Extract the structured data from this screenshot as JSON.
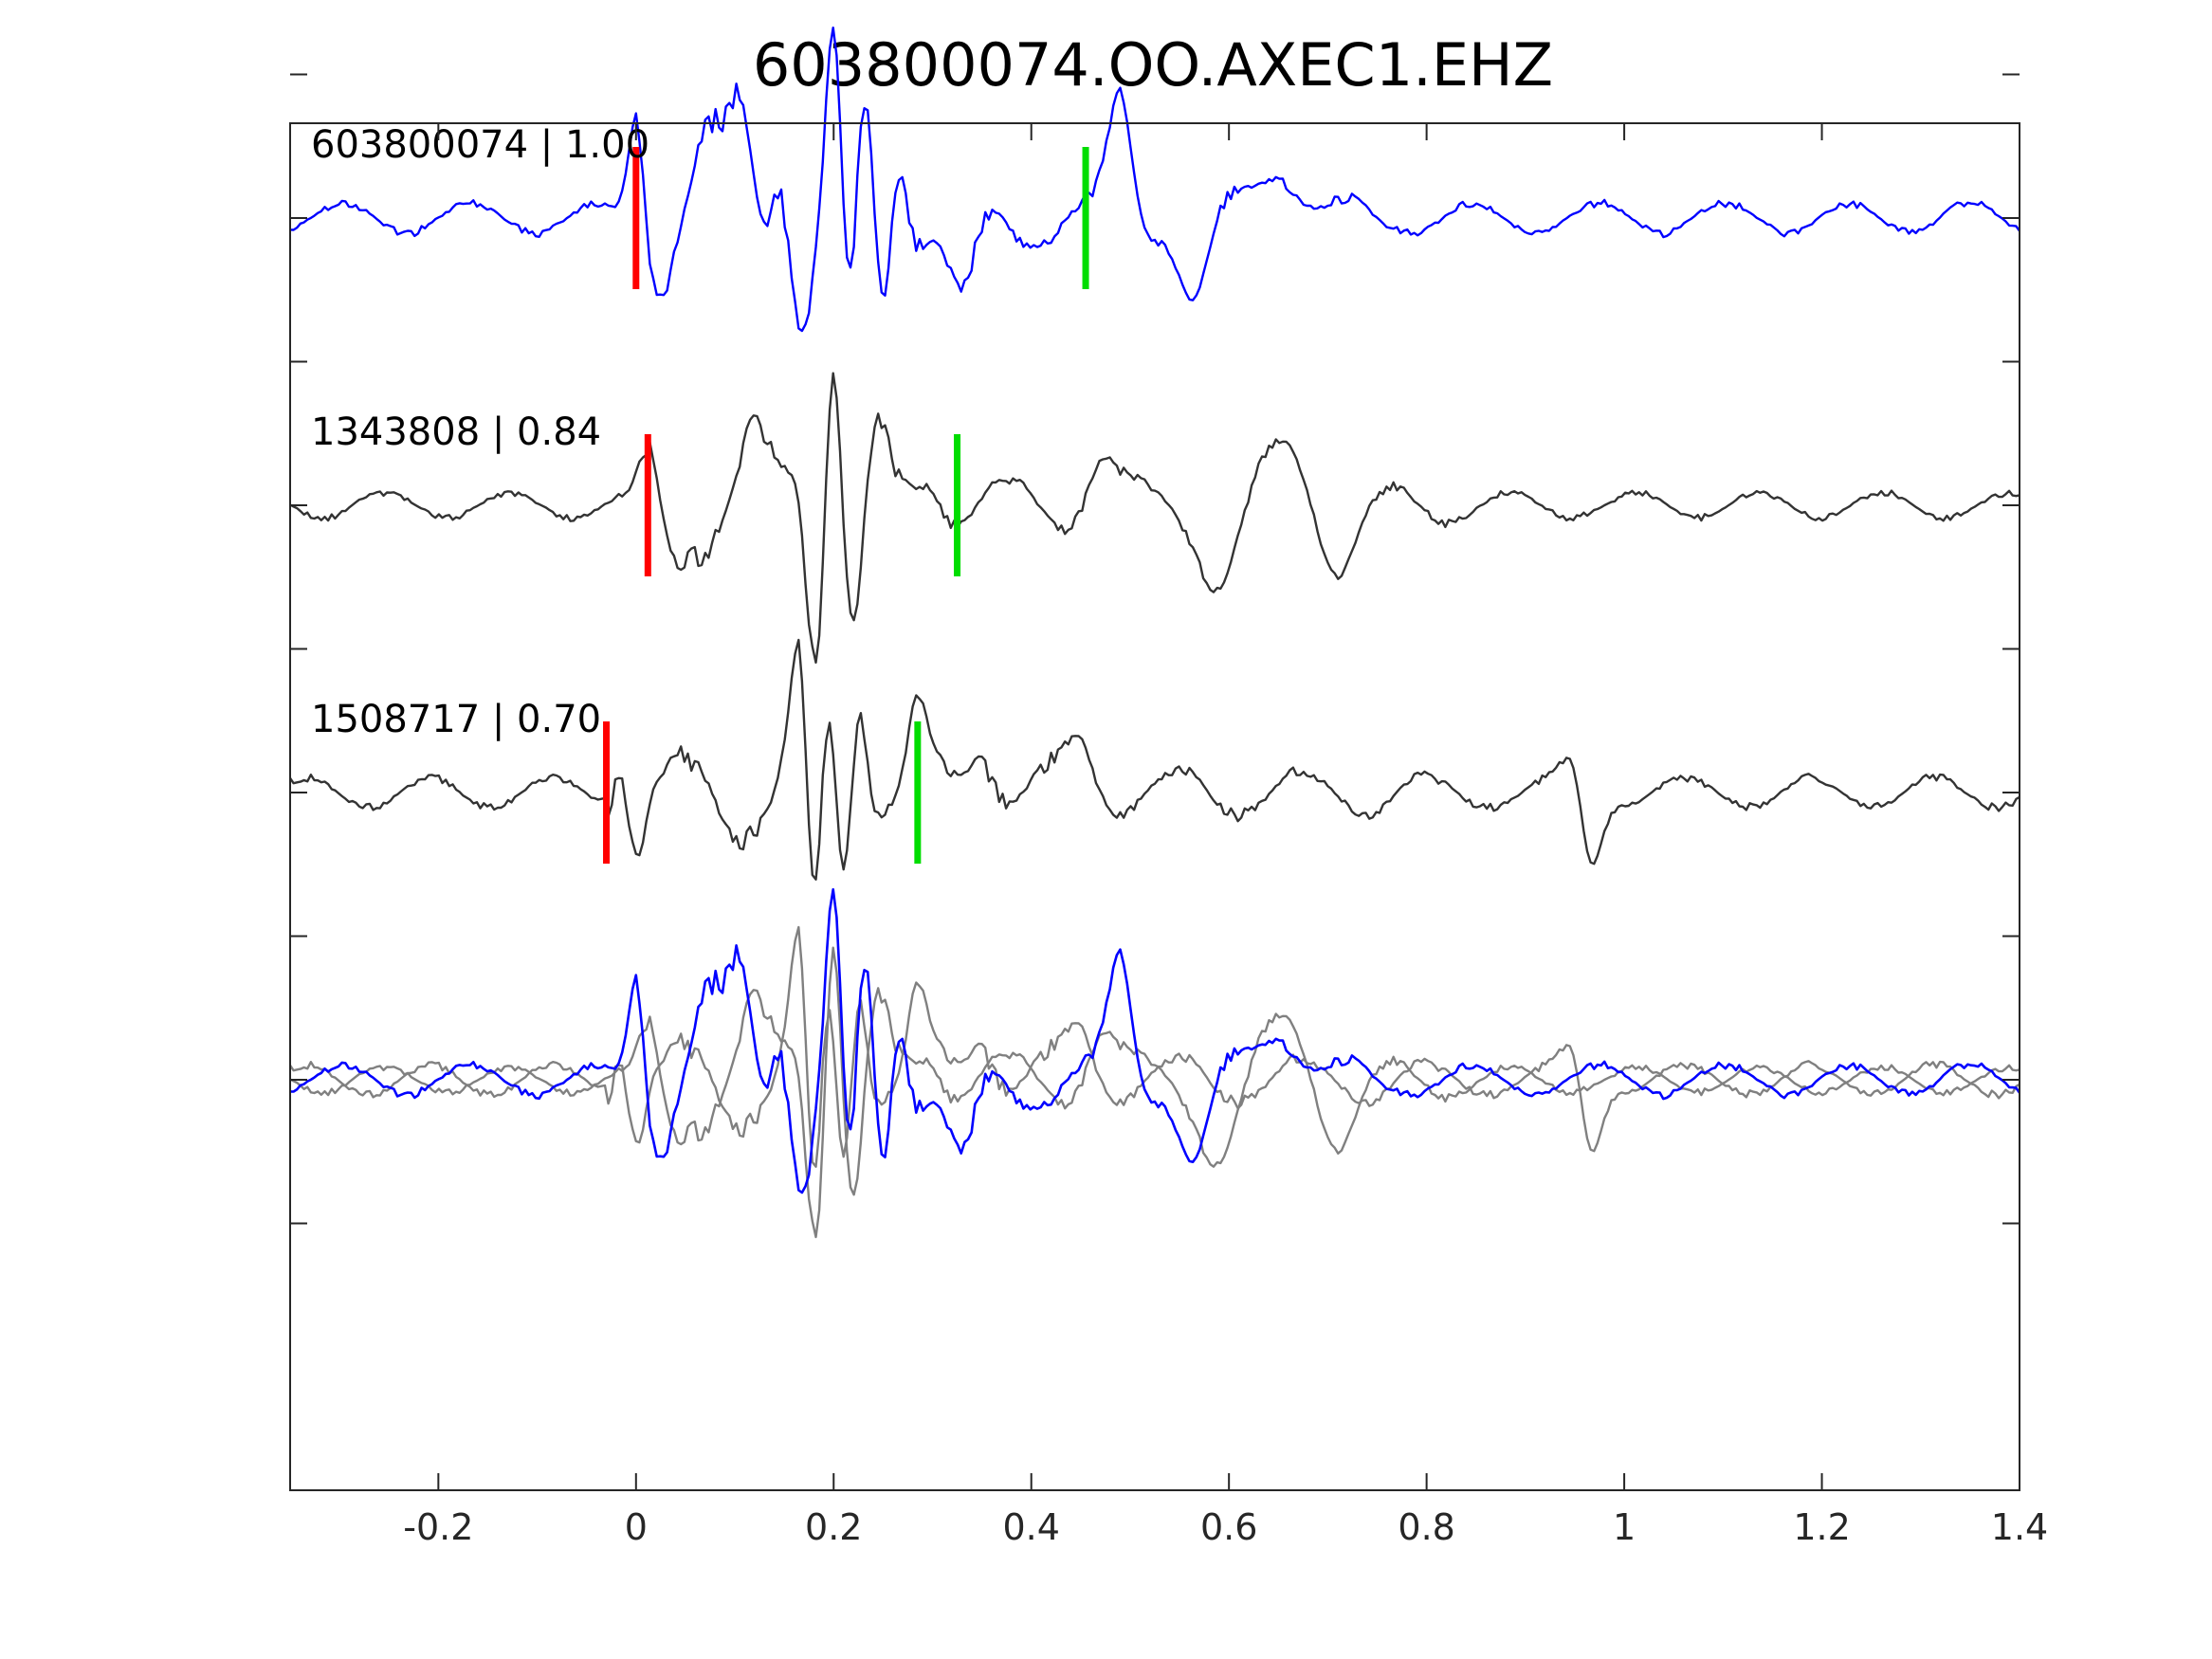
{
  "chart_data": {
    "type": "line",
    "title": "603800074.OO.AXEC1.EHZ",
    "xlabel": "",
    "ylabel": "",
    "xlim": [
      -0.35,
      1.4
    ],
    "x_ticks": [
      -0.2,
      0,
      0.2,
      0.4,
      0.6,
      0.8,
      1,
      1.2,
      1.4
    ],
    "x_tick_labels": [
      "-0.2",
      "0",
      "0.2",
      "0.4",
      "0.6",
      "0.8",
      "1",
      "1.2",
      "1.4"
    ],
    "y_tick_count": 9,
    "grid": false,
    "colors": {
      "reference": "#0000ff",
      "match": "#333333",
      "overlay_match": "#808080",
      "p_pick": "#ff0000",
      "s_pick": "#00dd00",
      "axis": "#262626"
    },
    "traces": [
      {
        "label": "603800074 | 1.00",
        "event": "603800074",
        "correlation": 1.0,
        "color": "#0000ff",
        "row": 1,
        "p_pick": 0.0,
        "s_pick": 0.455,
        "features": [
          {
            "t": 0.002,
            "a": 0.75,
            "w": 0.012
          },
          {
            "t": 0.02,
            "a": -0.35,
            "w": 0.015
          },
          {
            "t": 0.07,
            "a": 0.35,
            "w": 0.02
          },
          {
            "t": 0.105,
            "a": 0.55,
            "w": 0.015
          },
          {
            "t": 0.145,
            "a": 0.4,
            "w": 0.012
          },
          {
            "t": 0.17,
            "a": -0.55,
            "w": 0.012
          },
          {
            "t": 0.2,
            "a": 1.1,
            "w": 0.01
          },
          {
            "t": 0.218,
            "a": -0.9,
            "w": 0.012
          },
          {
            "t": 0.23,
            "a": 0.9,
            "w": 0.012
          },
          {
            "t": 0.25,
            "a": -0.6,
            "w": 0.012
          },
          {
            "t": 0.265,
            "a": 0.55,
            "w": 0.012
          },
          {
            "t": 0.33,
            "a": -0.6,
            "w": 0.02
          },
          {
            "t": 0.49,
            "a": 0.7,
            "w": 0.015
          },
          {
            "t": 0.565,
            "a": -0.5,
            "w": 0.02
          },
          {
            "t": 0.65,
            "a": 0.35,
            "w": 0.03
          }
        ],
        "noise": 0.12,
        "coda_end": 0.75
      },
      {
        "label": "1343808 | 0.84",
        "event": "1343808",
        "correlation": 0.84,
        "color": "#333333",
        "row": 3,
        "p_pick": 0.012,
        "s_pick": 0.325,
        "features": [
          {
            "t": 0.01,
            "a": 0.25,
            "w": 0.012
          },
          {
            "t": 0.04,
            "a": -0.25,
            "w": 0.015
          },
          {
            "t": 0.12,
            "a": 0.25,
            "w": 0.02
          },
          {
            "t": 0.165,
            "a": 0.25,
            "w": 0.015
          },
          {
            "t": 0.18,
            "a": -0.85,
            "w": 0.012
          },
          {
            "t": 0.2,
            "a": 1.1,
            "w": 0.01
          },
          {
            "t": 0.22,
            "a": -0.75,
            "w": 0.012
          },
          {
            "t": 0.245,
            "a": 0.35,
            "w": 0.012
          },
          {
            "t": 0.3,
            "a": 0.25,
            "w": 0.02
          },
          {
            "t": 0.47,
            "a": 0.3,
            "w": 0.02
          },
          {
            "t": 0.59,
            "a": -0.45,
            "w": 0.025
          },
          {
            "t": 0.66,
            "a": 0.35,
            "w": 0.03
          },
          {
            "t": 0.71,
            "a": -0.35,
            "w": 0.025
          }
        ],
        "noise": 0.1,
        "coda_end": 0.85
      },
      {
        "label": "1508717 | 0.70",
        "event": "1508717",
        "correlation": 0.7,
        "color": "#333333",
        "row": 5,
        "p_pick": -0.03,
        "s_pick": 0.285,
        "features": [
          {
            "t": -0.015,
            "a": 0.4,
            "w": 0.012
          },
          {
            "t": 0.0,
            "a": -0.35,
            "w": 0.012
          },
          {
            "t": 0.165,
            "a": 0.85,
            "w": 0.012
          },
          {
            "t": 0.18,
            "a": -1.05,
            "w": 0.012
          },
          {
            "t": 0.195,
            "a": 0.7,
            "w": 0.012
          },
          {
            "t": 0.21,
            "a": -0.7,
            "w": 0.012
          },
          {
            "t": 0.225,
            "a": 0.8,
            "w": 0.012
          },
          {
            "t": 0.285,
            "a": 0.45,
            "w": 0.012
          },
          {
            "t": 0.35,
            "a": 0.35,
            "w": 0.02
          },
          {
            "t": 0.45,
            "a": 0.3,
            "w": 0.02
          },
          {
            "t": 0.965,
            "a": -0.5,
            "w": 0.015
          },
          {
            "t": 0.95,
            "a": 0.25,
            "w": 0.015
          }
        ],
        "noise": 0.12,
        "coda_end": 0.8
      }
    ],
    "overlay": {
      "row": 7,
      "description_order": [
        "1343808",
        "1508717",
        "603800074"
      ]
    }
  }
}
